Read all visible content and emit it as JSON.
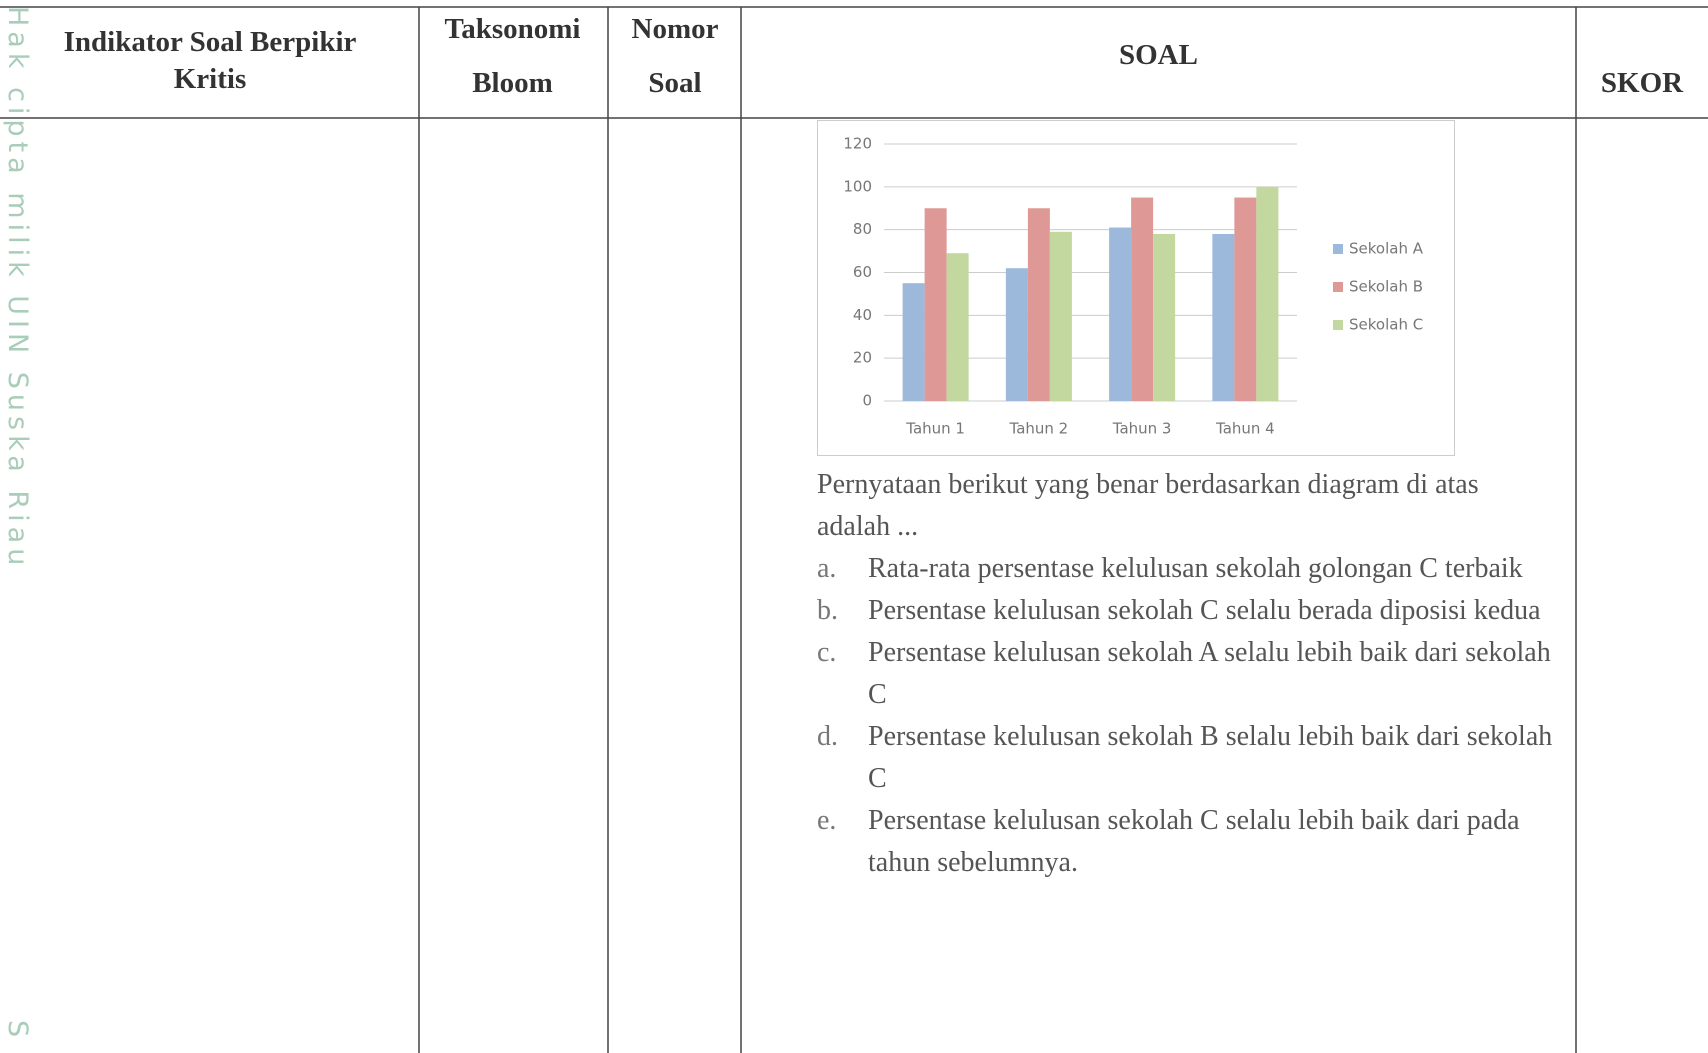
{
  "watermark": {
    "side_text": "Hak cipta milik UIN Suska Riau",
    "bottom_letter": "S"
  },
  "table": {
    "headers": [
      "Indikator Soal Berpikir Kritis",
      "Taksonomi Bloom",
      "Nomor Soal",
      "SOAL",
      "SKOR"
    ]
  },
  "chart_data": {
    "type": "bar",
    "categories": [
      "Tahun 1",
      "Tahun 2",
      "Tahun 3",
      "Tahun 4"
    ],
    "series": [
      {
        "name": "Sekolah A",
        "color": "#9cb8da",
        "values": [
          55,
          62,
          81,
          78
        ]
      },
      {
        "name": "Sekolah B",
        "color": "#de9896",
        "values": [
          90,
          90,
          95,
          95
        ]
      },
      {
        "name": "Sekolah C",
        "color": "#c2d89e",
        "values": [
          69,
          79,
          78,
          100
        ]
      }
    ],
    "ylim": [
      0,
      120
    ],
    "yticks": [
      0,
      20,
      40,
      60,
      80,
      100,
      120
    ],
    "grid": true,
    "legend": "right"
  },
  "question": {
    "stem": "Pernyataan berikut yang benar berdasarkan diagram di atas adalah ...",
    "options": [
      {
        "label": "a.",
        "text": "Rata-rata persentase kelulusan sekolah golongan C terbaik"
      },
      {
        "label": "b.",
        "text": "Persentase kelulusan sekolah C selalu berada diposisi kedua"
      },
      {
        "label": "c.",
        "text": "Persentase kelulusan sekolah A selalu lebih baik dari sekolah C"
      },
      {
        "label": "d.",
        "text": "Persentase kelulusan sekolah B selalu lebih baik dari sekolah C"
      },
      {
        "label": "e.",
        "text": "Persentase kelulusan sekolah C selalu lebih baik dari pada tahun sebelumnya."
      }
    ]
  }
}
